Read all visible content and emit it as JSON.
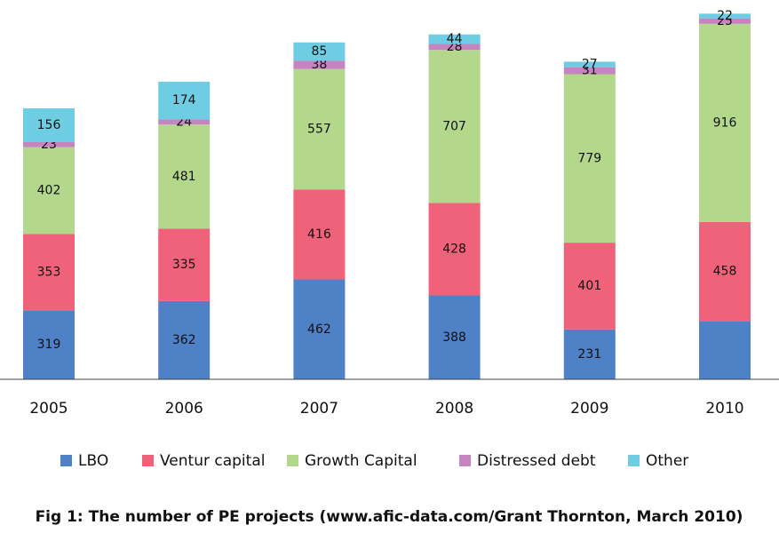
{
  "chart_data": {
    "type": "stacked_bar",
    "title": "Fig 1: The number of PE projects (www.afic-data.com/Grant Thornton, March 2010)",
    "categories": [
      "2005",
      "2006",
      "2007",
      "2008",
      "2009",
      "2010"
    ],
    "series": [
      {
        "name": "LBO",
        "color": "#4f81c7",
        "values": [
          319,
          362,
          462,
          388,
          231,
          270
        ],
        "value_labels": [
          "319",
          "362",
          "462",
          "388",
          "231",
          null
        ]
      },
      {
        "name": "Ventur capital",
        "color": "#f0627a",
        "values": [
          353,
          335,
          416,
          428,
          401,
          458
        ]
      },
      {
        "name": "Growth Capital",
        "color": "#b3d88c",
        "values": [
          402,
          481,
          557,
          707,
          779,
          916
        ]
      },
      {
        "name": "Distressed debt",
        "color": "#c684c0",
        "values": [
          23,
          24,
          38,
          28,
          31,
          25
        ]
      },
      {
        "name": "Other",
        "color": "#6fcde3",
        "values": [
          156,
          174,
          85,
          44,
          27,
          22
        ]
      }
    ],
    "ylim": [
      0,
      1750
    ]
  }
}
